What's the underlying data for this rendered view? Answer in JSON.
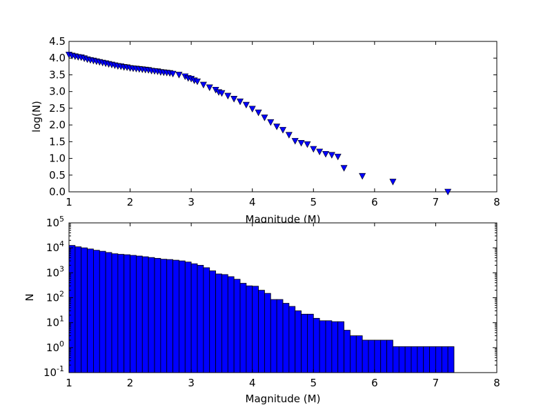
{
  "chart_data": [
    {
      "type": "scatter",
      "xlabel": "Magnitude (M)",
      "ylabel": "log(N)",
      "xlim": [
        1,
        8
      ],
      "ylim": [
        0,
        4.5
      ],
      "xticks": [
        "1",
        "2",
        "3",
        "4",
        "5",
        "6",
        "7",
        "8"
      ],
      "yticks": [
        "0.0",
        "0.5",
        "1.0",
        "1.5",
        "2.0",
        "2.5",
        "3.0",
        "3.5",
        "4.0",
        "4.5"
      ],
      "marker": "triangle-down",
      "marker_color": "#0000ff",
      "series": [
        {
          "x": [
            1.0,
            1.05,
            1.1,
            1.15,
            1.2,
            1.25,
            1.3,
            1.35,
            1.4,
            1.45,
            1.5,
            1.55,
            1.6,
            1.65,
            1.7,
            1.75,
            1.8,
            1.85,
            1.9,
            1.95,
            2.0,
            2.05,
            2.1,
            2.15,
            2.2,
            2.25,
            2.3,
            2.35,
            2.4,
            2.45,
            2.5,
            2.55,
            2.6,
            2.65,
            2.7,
            2.8,
            2.9,
            2.95,
            3.0,
            3.05,
            3.1,
            3.2,
            3.3,
            3.4,
            3.45,
            3.5,
            3.6,
            3.7,
            3.8,
            3.9,
            4.0,
            4.1,
            4.2,
            4.3,
            4.4,
            4.5,
            4.6,
            4.7,
            4.8,
            4.9,
            5.0,
            5.1,
            5.2,
            5.3,
            5.4,
            5.5,
            5.8,
            6.3,
            7.2
          ],
          "y": [
            4.1,
            4.07,
            4.05,
            4.03,
            4.02,
            3.99,
            3.96,
            3.94,
            3.92,
            3.9,
            3.88,
            3.86,
            3.84,
            3.82,
            3.8,
            3.78,
            3.76,
            3.75,
            3.73,
            3.72,
            3.7,
            3.69,
            3.68,
            3.67,
            3.66,
            3.65,
            3.64,
            3.62,
            3.61,
            3.6,
            3.58,
            3.57,
            3.56,
            3.55,
            3.53,
            3.5,
            3.45,
            3.4,
            3.38,
            3.33,
            3.3,
            3.2,
            3.12,
            3.05,
            2.98,
            2.95,
            2.87,
            2.78,
            2.7,
            2.6,
            2.48,
            2.37,
            2.22,
            2.08,
            1.95,
            1.85,
            1.7,
            1.52,
            1.46,
            1.42,
            1.28,
            1.2,
            1.13,
            1.1,
            1.05,
            0.71,
            0.47,
            0.3,
            0.0
          ]
        }
      ]
    },
    {
      "type": "bar",
      "xlabel": "Magnitude (M)",
      "ylabel": "N",
      "xlim": [
        1,
        8
      ],
      "yscale": "log",
      "ylim": [
        0.1,
        100000
      ],
      "xticks": [
        "1",
        "2",
        "3",
        "4",
        "5",
        "6",
        "7",
        "8"
      ],
      "yticks": [
        {
          "base": "10",
          "exp": "-1",
          "value": 0.1
        },
        {
          "base": "10",
          "exp": "0",
          "value": 1
        },
        {
          "base": "10",
          "exp": "1",
          "value": 10
        },
        {
          "base": "10",
          "exp": "2",
          "value": 100
        },
        {
          "base": "10",
          "exp": "3",
          "value": 1000
        },
        {
          "base": "10",
          "exp": "4",
          "value": 10000
        },
        {
          "base": "10",
          "exp": "5",
          "value": 100000
        }
      ],
      "bar_color": "#0000ff",
      "bin_width": 0.1,
      "bin_starts": [
        1.0,
        1.1,
        1.2,
        1.3,
        1.4,
        1.5,
        1.6,
        1.7,
        1.8,
        1.9,
        2.0,
        2.1,
        2.2,
        2.3,
        2.4,
        2.5,
        2.6,
        2.7,
        2.8,
        2.9,
        3.0,
        3.1,
        3.2,
        3.3,
        3.4,
        3.5,
        3.6,
        3.7,
        3.8,
        3.9,
        4.0,
        4.1,
        4.2,
        4.3,
        4.4,
        4.5,
        4.6,
        4.7,
        4.8,
        4.9,
        5.0,
        5.1,
        5.2,
        5.3,
        5.4,
        5.5,
        5.6,
        5.7,
        5.8,
        5.9,
        6.0,
        6.1,
        6.2,
        6.3,
        6.4,
        6.5,
        6.6,
        6.7,
        6.8,
        6.9,
        7.0,
        7.1,
        7.2
      ],
      "values": [
        12500,
        11000,
        10000,
        9000,
        8000,
        7300,
        6500,
        5800,
        5500,
        5300,
        5000,
        4700,
        4400,
        4100,
        3800,
        3500,
        3400,
        3200,
        3000,
        2700,
        2300,
        2000,
        1600,
        1200,
        900,
        850,
        700,
        550,
        380,
        300,
        290,
        200,
        150,
        85,
        85,
        60,
        45,
        30,
        22,
        22,
        15,
        12,
        12,
        11,
        11,
        5,
        3,
        3,
        2,
        2,
        2,
        2,
        2,
        1.1,
        1.1,
        1.1,
        1.1,
        1.1,
        1.1,
        1.1,
        1.1,
        1.1,
        1.1
      ]
    }
  ]
}
